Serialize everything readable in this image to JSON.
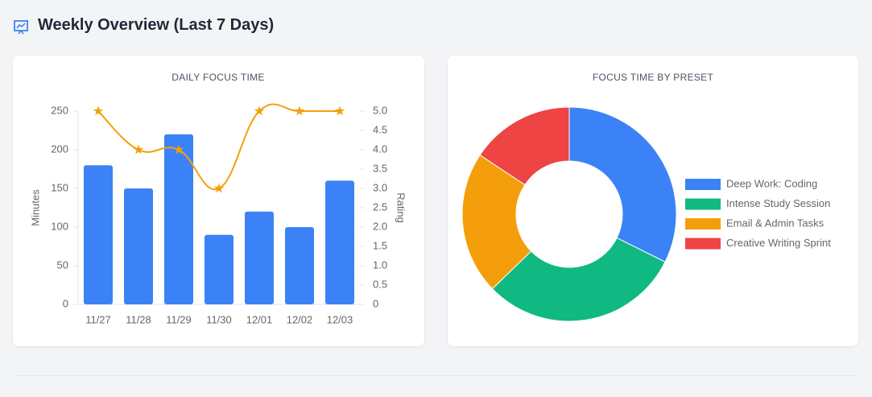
{
  "header": {
    "title": "Weekly Overview (Last 7 Days)"
  },
  "chart_data": [
    {
      "type": "bar",
      "title": "DAILY FOCUS TIME",
      "categories": [
        "11/27",
        "11/28",
        "11/29",
        "11/30",
        "12/01",
        "12/02",
        "12/03"
      ],
      "y_label": "Minutes",
      "y2_label": "Rating",
      "series": [
        {
          "name": "Minutes",
          "type": "bar",
          "color": "#3b82f6",
          "values": [
            180,
            150,
            220,
            90,
            120,
            100,
            160
          ]
        },
        {
          "name": "Rating",
          "type": "line",
          "axis": "y2",
          "color": "#f59e0b",
          "values": [
            5,
            4,
            4,
            3,
            5,
            5,
            5
          ]
        }
      ],
      "ylim": [
        0,
        250
      ],
      "yticks": [
        0,
        50,
        100,
        150,
        200,
        250
      ],
      "y2lim": [
        0,
        5
      ],
      "y2ticks": [
        0,
        0.5,
        {
          "value": 1,
          "label": "1.0"
        },
        1.5,
        {
          "value": 2,
          "label": "2.0"
        },
        2.5,
        {
          "value": 3,
          "label": "3.0"
        },
        3.5,
        {
          "value": 4,
          "label": "4.0"
        },
        4.5,
        {
          "value": 5,
          "label": "5.0"
        }
      ],
      "grid": false,
      "legend": false
    },
    {
      "type": "pie",
      "title": "FOCUS TIME BY PRESET",
      "donut": true,
      "categories": [
        "Deep Work: Coding",
        "Intense Study Session",
        "Email & Admin Tasks",
        "Creative Writing Sprint"
      ],
      "values": [
        330,
        310,
        220,
        160
      ],
      "colors": [
        "#3b82f6",
        "#10b981",
        "#f59e0b",
        "#ef4444"
      ],
      "legend": "right"
    }
  ]
}
